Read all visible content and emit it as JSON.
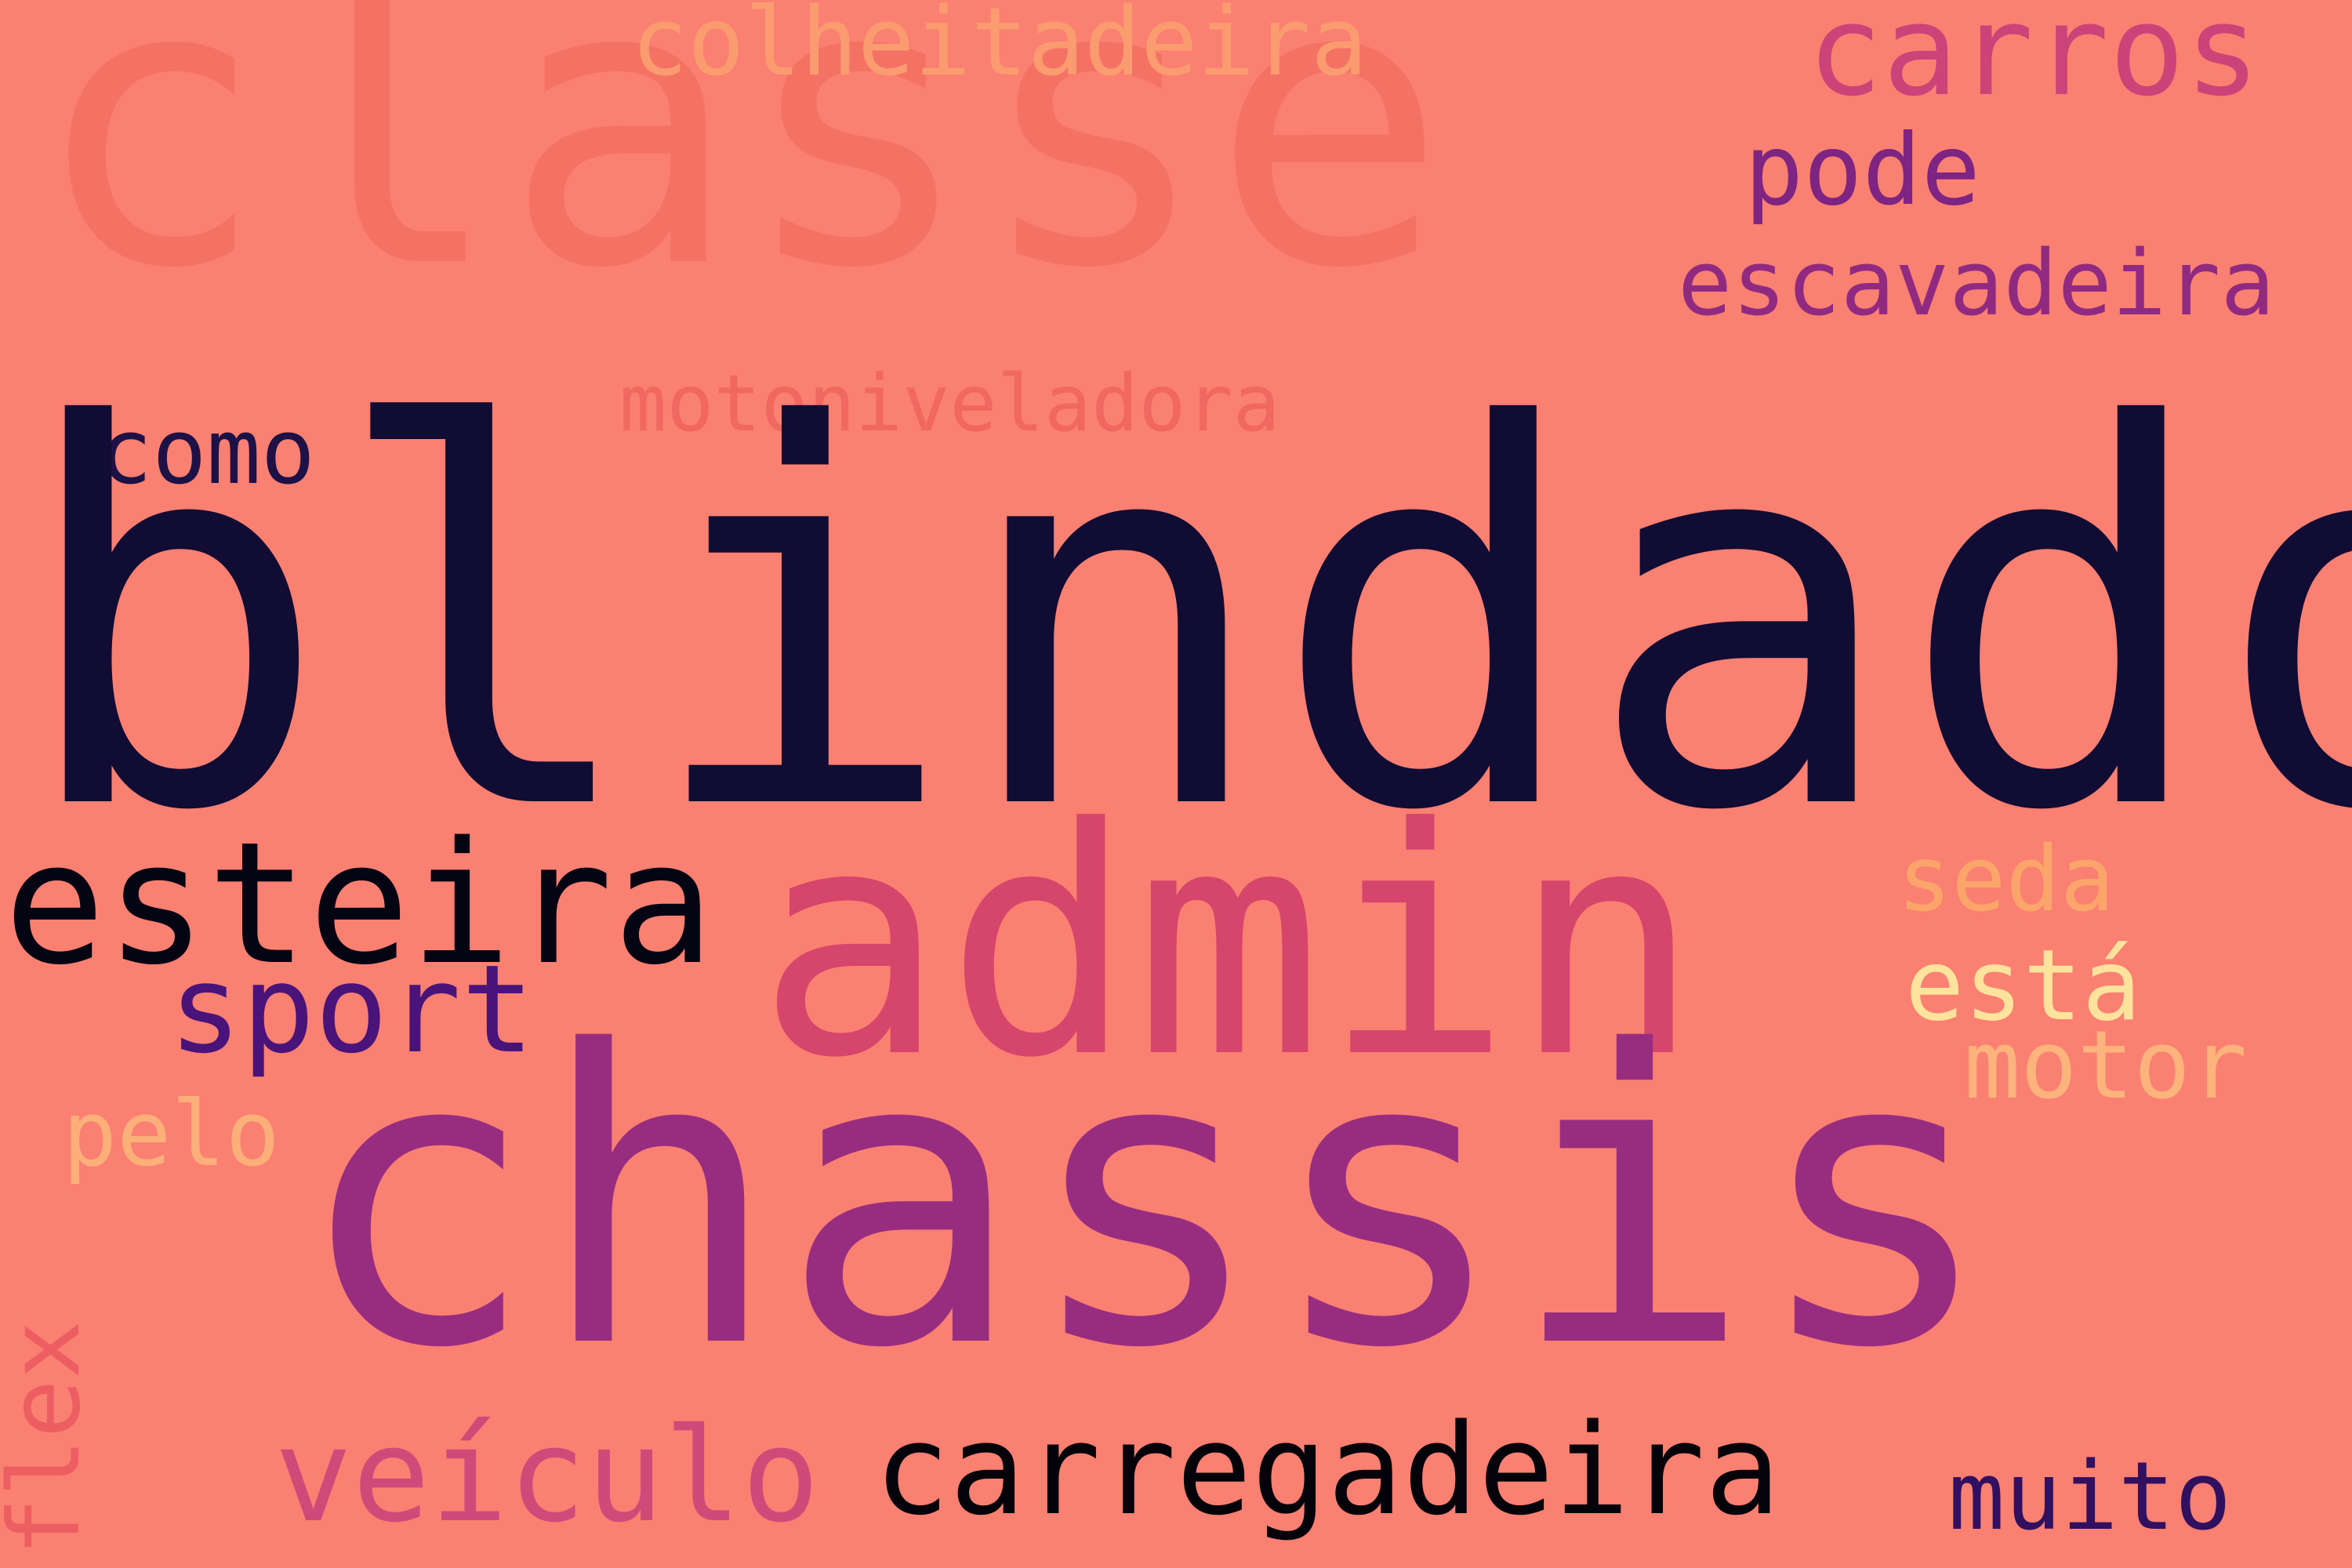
{
  "background": "#fa8072",
  "words": {
    "classe": {
      "text": "classe",
      "color": "#f47264"
    },
    "colheitadeira": {
      "text": "colheitadeira",
      "color": "#fb9c70"
    },
    "carros": {
      "text": "carros",
      "color": "#cb4378"
    },
    "pode": {
      "text": "pode",
      "color": "#7e2482"
    },
    "escavadeira": {
      "text": "escavadeira",
      "color": "#902a81"
    },
    "motoniveladora": {
      "text": "motoniveladora",
      "color": "#f06860"
    },
    "como": {
      "text": "como",
      "color": "#1d1147"
    },
    "blindado": {
      "text": "blindado",
      "color": "#110c33"
    },
    "esteira": {
      "text": "esteira",
      "color": "#050413"
    },
    "admin": {
      "text": "admin",
      "color": "#d6456b"
    },
    "seda": {
      "text": "seda",
      "color": "#fca56a"
    },
    "sport": {
      "text": "sport",
      "color": "#49137a"
    },
    "esta": {
      "text": "está",
      "color": "#fde39c"
    },
    "motor": {
      "text": "motor",
      "color": "#fcb37c"
    },
    "chassis": {
      "text": "chassis",
      "color": "#982d80"
    },
    "pelo": {
      "text": "pelo",
      "color": "#fdaf7a"
    },
    "flex": {
      "text": "flex",
      "color": "#ec5e62"
    },
    "veiculo": {
      "text": "veículo",
      "color": "#d04a79"
    },
    "carregadeira": {
      "text": "carregadeira",
      "color": "#040309"
    },
    "muito": {
      "text": "muito",
      "color": "#30105f"
    }
  }
}
